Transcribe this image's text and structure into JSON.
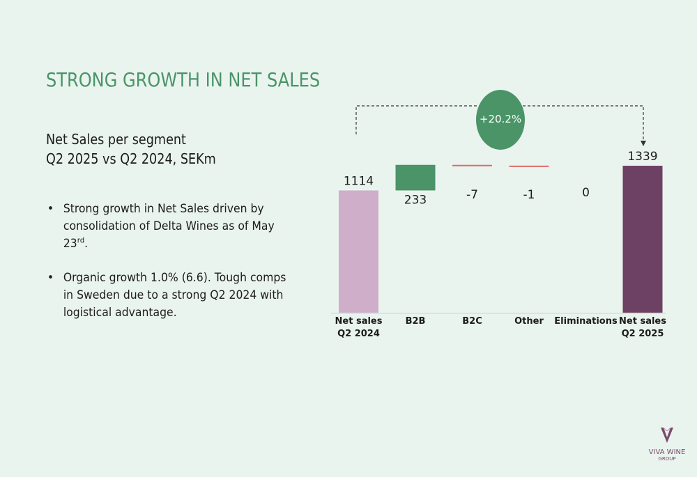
{
  "title": "STRONG GROWTH IN NET SALES",
  "subtitle": {
    "line1": "Net Sales per segment",
    "line2": "Q2 2025 vs Q2 2024, SEKm"
  },
  "bullets": [
    {
      "text": "Strong growth in Net Sales driven by consolidation of Delta Wines as of May 23",
      "sup": "rd",
      "tail": "."
    },
    {
      "text": "Organic growth 1.0% (6.6). Tough comps in Sweden due to a  strong Q2 2024 with logistical advantage.",
      "sup": "",
      "tail": ""
    }
  ],
  "chart_data": {
    "type": "bar",
    "subtype": "waterfall",
    "categories": [
      "Net sales Q2 2024",
      "B2B",
      "B2C",
      "Other",
      "Eliminations",
      "Net sales Q2 2025"
    ],
    "category_lines": [
      [
        "Net sales",
        "Q2 2024"
      ],
      [
        "B2B"
      ],
      [
        "B2C"
      ],
      [
        "Other"
      ],
      [
        "Eliminations"
      ],
      [
        "Net sales",
        "Q2 2025"
      ]
    ],
    "values": [
      1114,
      233,
      -7,
      -1,
      0,
      1339
    ],
    "data_labels": [
      "1114",
      "233",
      "-7",
      "-1",
      "0",
      "1339"
    ],
    "kinds": [
      "total",
      "delta",
      "delta",
      "delta",
      "delta",
      "total"
    ],
    "growth_label": "+20.2%",
    "ylim": [
      0,
      1339
    ],
    "colors": {
      "start_total": "#cfaec9",
      "end_total": "#6d4163",
      "increase": "#4a9467",
      "decrease": "#e06a6a",
      "growth_circle": "#4a9467"
    }
  },
  "logo": {
    "icon": "wine-glass-v-icon",
    "name": "VIVA WINE",
    "sub": "GROUP"
  }
}
